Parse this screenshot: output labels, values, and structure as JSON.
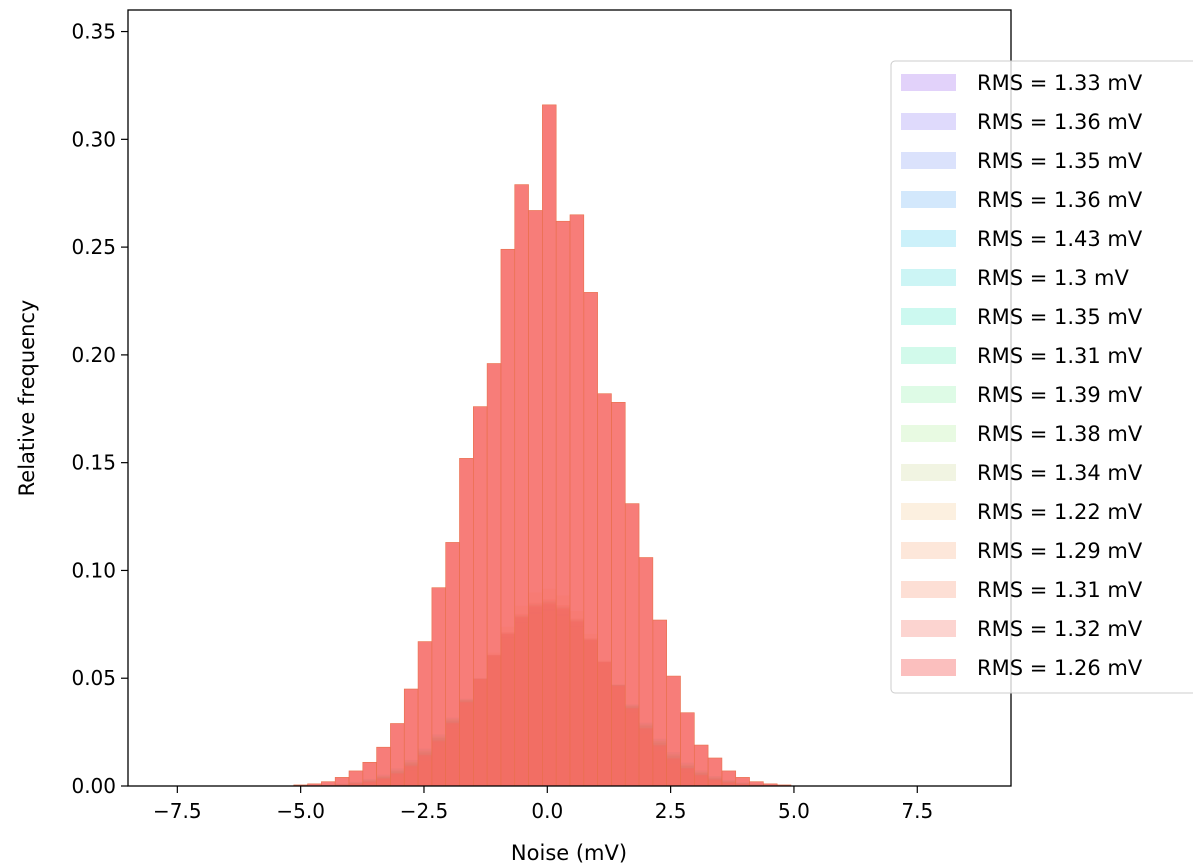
{
  "chart_data": {
    "type": "bar",
    "title": "",
    "xlabel": "Noise (mV)",
    "ylabel": "Relative frequency",
    "xlim": [
      -8.5,
      9.4
    ],
    "ylim": [
      0,
      0.36
    ],
    "xticks": [
      "−7.5",
      "−5.0",
      "−2.5",
      "0.0",
      "2.5",
      "5.0",
      "7.5"
    ],
    "xtick_values": [
      -7.5,
      -5.0,
      -2.5,
      0.0,
      2.5,
      5.0,
      7.5
    ],
    "yticks": [
      "0.00",
      "0.05",
      "0.10",
      "0.15",
      "0.20",
      "0.25",
      "0.30",
      "0.35"
    ],
    "ytick_values": [
      0,
      0.05,
      0.1,
      0.15,
      0.2,
      0.25,
      0.3,
      0.35
    ],
    "grid": false,
    "legend_position": "right",
    "bin_width": 0.28,
    "bin_centers": [
      -5.0,
      -4.72,
      -4.44,
      -4.16,
      -3.88,
      -3.6,
      -3.32,
      -3.04,
      -2.76,
      -2.48,
      -2.2,
      -1.92,
      -1.64,
      -1.36,
      -1.08,
      -0.8,
      -0.52,
      -0.24,
      0.04,
      0.32,
      0.6,
      0.88,
      1.16,
      1.44,
      1.72,
      2.0,
      2.28,
      2.56,
      2.84,
      3.12,
      3.4,
      3.68,
      3.96,
      4.24,
      4.52,
      4.8
    ],
    "final_series_values": [
      0.0005,
      0.001,
      0.002,
      0.004,
      0.007,
      0.011,
      0.018,
      0.029,
      0.045,
      0.067,
      0.092,
      0.113,
      0.152,
      0.176,
      0.196,
      0.249,
      0.279,
      0.267,
      0.316,
      0.262,
      0.265,
      0.229,
      0.182,
      0.178,
      0.131,
      0.106,
      0.077,
      0.051,
      0.034,
      0.019,
      0.013,
      0.007,
      0.004,
      0.002,
      0.001,
      0.0005
    ],
    "series": [
      {
        "name": "RMS = 1.33 mV",
        "color": "#a474f0",
        "rms": 1.33
      },
      {
        "name": "RMS = 1.36 mV",
        "color": "#9b8cf5",
        "rms": 1.36
      },
      {
        "name": "RMS = 1.35 mV",
        "color": "#8fa5f5",
        "rms": 1.35
      },
      {
        "name": "RMS = 1.36 mV",
        "color": "#77b7f5",
        "rms": 1.36
      },
      {
        "name": "RMS = 1.43 mV",
        "color": "#5fd3f0",
        "rms": 1.43
      },
      {
        "name": "RMS = 1.3 mV",
        "color": "#5fe0e0",
        "rms": 1.3
      },
      {
        "name": "RMS = 1.35 mV",
        "color": "#5fecd0",
        "rms": 1.35
      },
      {
        "name": "RMS = 1.31 mV",
        "color": "#74f0c0",
        "rms": 1.31
      },
      {
        "name": "RMS = 1.39 mV",
        "color": "#97f2b2",
        "rms": 1.39
      },
      {
        "name": "RMS = 1.38 mV",
        "color": "#b6efa6",
        "rms": 1.38
      },
      {
        "name": "RMS = 1.34 mV",
        "color": "#d2dca6",
        "rms": 1.34
      },
      {
        "name": "RMS = 1.22 mV",
        "color": "#f5d0a0",
        "rms": 1.22
      },
      {
        "name": "RMS = 1.29 mV",
        "color": "#f8b48c",
        "rms": 1.29
      },
      {
        "name": "RMS = 1.31 mV",
        "color": "#f89c7c",
        "rms": 1.31
      },
      {
        "name": "RMS = 1.32 mV",
        "color": "#f57a6c",
        "rms": 1.32
      },
      {
        "name": "RMS = 1.26 mV",
        "color": "#f5605c",
        "rms": 1.26
      }
    ]
  }
}
